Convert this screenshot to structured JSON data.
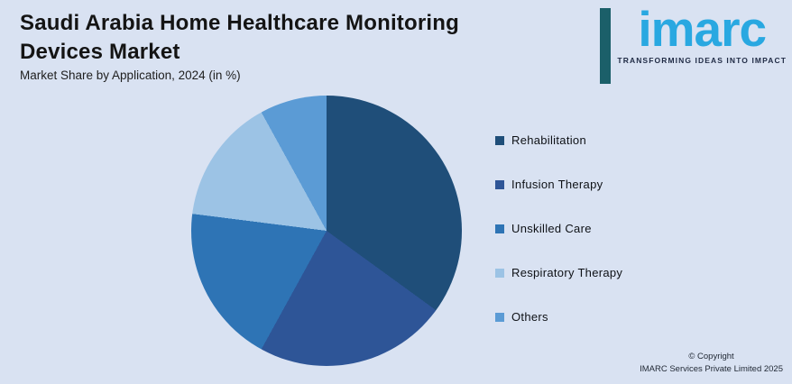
{
  "background": "#d9e2f2",
  "header": {
    "title_line1": "Saudi Arabia Home Healthcare Monitoring",
    "title_line2": "Devices Market",
    "subtitle": "Market Share by Application, 2024 (in %)"
  },
  "logo": {
    "wordmark": "imarc",
    "tagline": "TRANSFORMING IDEAS INTO IMPACT",
    "bar_color": "#1b5f69",
    "wordmark_color": "#29a8e1",
    "tagline_color": "#1f2a44"
  },
  "chart_data": {
    "type": "pie",
    "title": "Saudi Arabia Home Healthcare Monitoring Devices Market",
    "subtitle": "Market Share by Application, 2024 (in %)",
    "unit": "%",
    "start_angle_deg": 0,
    "direction": "clockwise",
    "legend_position": "right",
    "categories": [
      "Rehabilitation",
      "Infusion Therapy",
      "Unskilled Care",
      "Respiratory Therapy",
      "Others"
    ],
    "values": [
      35,
      23,
      19,
      15,
      8
    ],
    "values_estimated_from_pixels": true,
    "colors": [
      "#1f4e79",
      "#2e5597",
      "#2e74b5",
      "#9cc3e5",
      "#5b9bd5"
    ]
  },
  "footer": {
    "copyright_line1": "© Copyright",
    "copyright_line2": "IMARC Services Private Limited 2025"
  }
}
